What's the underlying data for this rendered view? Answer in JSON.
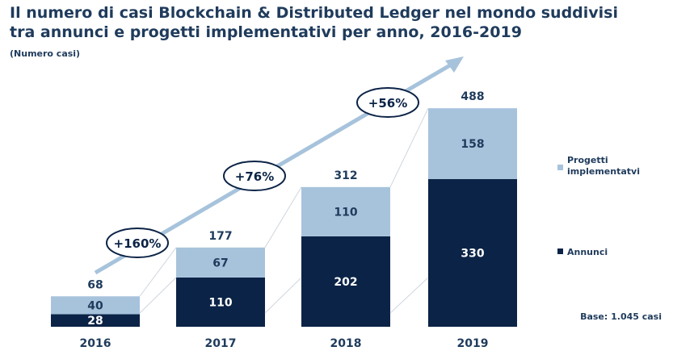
{
  "title_line1": "Il numero di casi Blockchain & Distributed Ledger nel mondo suddivisi",
  "title_line2": "tra annunci e progetti implementativi per anno, 2016-2019",
  "subtitle": "(Numero casi)",
  "base_note": "Base: 1.045 casi",
  "colors": {
    "annunci": "#0b2346",
    "progetti": "#a7c3dc",
    "arrow": "#a7c3dc",
    "text": "#1f3b5c"
  },
  "chart_data": {
    "type": "bar",
    "stacked": true,
    "categories": [
      "2016",
      "2017",
      "2018",
      "2019"
    ],
    "series": [
      {
        "name": "Annunci",
        "values": [
          28,
          110,
          202,
          330
        ]
      },
      {
        "name": "Progetti implementatvi",
        "values": [
          40,
          67,
          110,
          158
        ]
      }
    ],
    "totals": [
      68,
      177,
      312,
      488
    ],
    "growth_labels": [
      "+160%",
      "+76%",
      "+56%"
    ],
    "ylim": [
      0,
      500
    ],
    "legend_position": "right",
    "grid": false
  }
}
